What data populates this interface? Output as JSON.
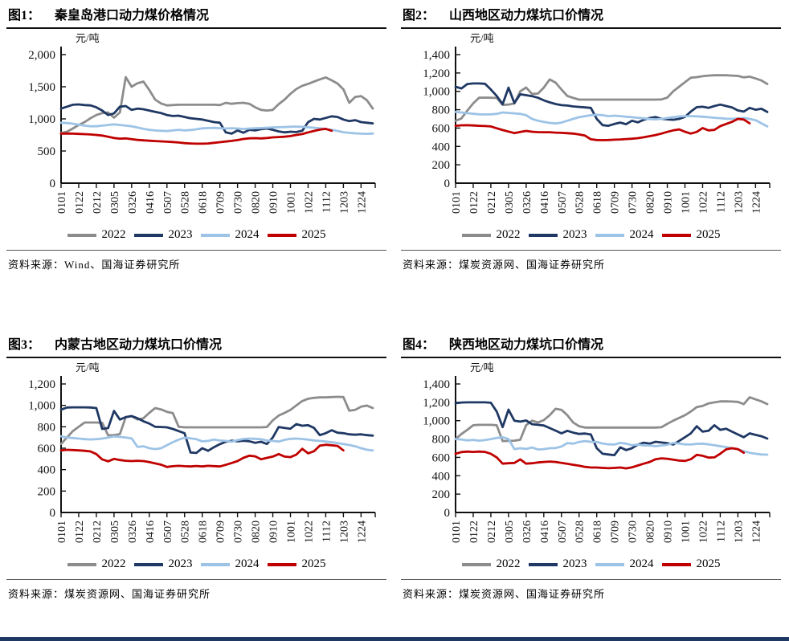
{
  "page": {
    "bottom_bar_color": "#1F3864"
  },
  "chart_data": [
    {
      "type": "line",
      "figure_label": "图1：",
      "title": "秦皇岛港口动力煤价格情况",
      "unit": "元/吨",
      "source_label": "资料来源：",
      "source": "Wind、国海证券研究所",
      "ylim": [
        0,
        2000
      ],
      "ytick_step": 500,
      "grid": false,
      "legend_position": "bottom",
      "n_points": 54,
      "categories": [
        "0101",
        "0122",
        "0212",
        "0305",
        "0326",
        "0416",
        "0507",
        "0528",
        "0618",
        "0709",
        "0730",
        "0820",
        "0910",
        "1001",
        "1022",
        "1112",
        "1203",
        "1224"
      ],
      "series": [
        {
          "name": "2022",
          "color": "#8C8C8C",
          "values": [
            780,
            800,
            850,
            905,
            950,
            1010,
            1060,
            1090,
            1100,
            1020,
            1100,
            1650,
            1500,
            1555,
            1580,
            1450,
            1300,
            1240,
            1210,
            1215,
            1220,
            1220,
            1220,
            1220,
            1220,
            1220,
            1220,
            1215,
            1250,
            1235,
            1245,
            1250,
            1235,
            1180,
            1140,
            1130,
            1140,
            1230,
            1300,
            1390,
            1465,
            1515,
            1545,
            1580,
            1615,
            1645,
            1600,
            1550,
            1460,
            1250,
            1340,
            1355,
            1290,
            1160
          ]
        },
        {
          "name": "2023",
          "color": "#1F3864",
          "values": [
            1160,
            1190,
            1220,
            1225,
            1215,
            1210,
            1180,
            1130,
            1060,
            1085,
            1190,
            1200,
            1140,
            1160,
            1150,
            1130,
            1110,
            1090,
            1060,
            1045,
            1050,
            1030,
            1010,
            1000,
            990,
            970,
            950,
            940,
            790,
            770,
            820,
            785,
            830,
            820,
            840,
            850,
            830,
            805,
            790,
            800,
            795,
            815,
            950,
            1000,
            990,
            1015,
            1040,
            1030,
            990,
            965,
            980,
            950,
            940,
            930
          ]
        },
        {
          "name": "2024",
          "color": "#9DC3E6",
          "values": [
            940,
            935,
            925,
            910,
            895,
            885,
            885,
            895,
            905,
            915,
            905,
            895,
            885,
            865,
            845,
            830,
            820,
            815,
            810,
            820,
            830,
            820,
            828,
            838,
            852,
            858,
            860,
            855,
            850,
            855,
            850,
            842,
            850,
            855,
            858,
            862,
            868,
            870,
            874,
            878,
            880,
            876,
            870,
            862,
            852,
            842,
            830,
            812,
            792,
            782,
            775,
            770,
            768,
            772
          ]
        },
        {
          "name": "2025",
          "color": "#C00000",
          "values": [
            770,
            772,
            770,
            766,
            762,
            757,
            750,
            740,
            722,
            703,
            692,
            696,
            684,
            673,
            666,
            660,
            655,
            650,
            645,
            640,
            632,
            622,
            617,
            614,
            614,
            618,
            627,
            638,
            648,
            658,
            670,
            688,
            698,
            700,
            696,
            702,
            712,
            718,
            722,
            732,
            750,
            764,
            790,
            812,
            832,
            845,
            815
          ]
        }
      ]
    },
    {
      "type": "line",
      "figure_label": "图2：",
      "title": "山西地区动力煤坑口价情况",
      "unit": "元/吨",
      "source_label": "资料来源：",
      "source": "煤炭资源网、国海证券研究所",
      "ylim": [
        0,
        1400
      ],
      "ytick_step": 200,
      "grid": false,
      "legend_position": "bottom",
      "n_points": 54,
      "categories": [
        "0101",
        "0122",
        "0212",
        "0305",
        "0326",
        "0416",
        "0507",
        "0528",
        "0618",
        "0709",
        "0730",
        "0820",
        "0910",
        "1001",
        "1022",
        "1112",
        "1203",
        "1224"
      ],
      "series": [
        {
          "name": "2022",
          "color": "#8C8C8C",
          "values": [
            680,
            705,
            790,
            870,
            930,
            932,
            930,
            928,
            852,
            856,
            868,
            1000,
            1042,
            972,
            976,
            1040,
            1130,
            1095,
            1020,
            950,
            928,
            910,
            910,
            910,
            910,
            910,
            910,
            910,
            910,
            910,
            910,
            910,
            910,
            910,
            910,
            912,
            932,
            1000,
            1050,
            1100,
            1148,
            1155,
            1165,
            1172,
            1175,
            1175,
            1175,
            1172,
            1168,
            1152,
            1160,
            1140,
            1118,
            1080
          ]
        },
        {
          "name": "2023",
          "color": "#1F3864",
          "values": [
            1050,
            1032,
            1080,
            1086,
            1086,
            1082,
            1020,
            950,
            860,
            1040,
            872,
            968,
            958,
            948,
            930,
            902,
            880,
            862,
            850,
            845,
            836,
            830,
            825,
            820,
            700,
            632,
            625,
            645,
            660,
            642,
            680,
            662,
            690,
            710,
            720,
            702,
            695,
            690,
            700,
            722,
            780,
            828,
            832,
            820,
            840,
            856,
            840,
            825,
            792,
            780,
            820,
            800,
            810,
            775
          ]
        },
        {
          "name": "2024",
          "color": "#9DC3E6",
          "values": [
            775,
            770,
            762,
            756,
            750,
            748,
            750,
            755,
            770,
            765,
            760,
            754,
            740,
            700,
            680,
            668,
            656,
            650,
            660,
            680,
            700,
            718,
            730,
            740,
            745,
            740,
            730,
            735,
            730,
            724,
            718,
            712,
            706,
            698,
            695,
            700,
            710,
            718,
            726,
            730,
            730,
            728,
            724,
            718,
            712,
            708,
            702,
            700,
            705,
            710,
            700,
            686,
            652,
            618
          ]
        },
        {
          "name": "2025",
          "color": "#C00000",
          "values": [
            625,
            630,
            631,
            628,
            625,
            622,
            618,
            598,
            578,
            562,
            545,
            557,
            569,
            560,
            556,
            555,
            555,
            550,
            548,
            544,
            540,
            530,
            518,
            478,
            470,
            468,
            470,
            473,
            476,
            480,
            484,
            490,
            500,
            512,
            524,
            540,
            558,
            575,
            585,
            560,
            540,
            558,
            600,
            575,
            580,
            620,
            645,
            668,
            700,
            693,
            652
          ]
        }
      ]
    },
    {
      "type": "line",
      "figure_label": "图3：",
      "title": "内蒙古地区动力煤坑口价情况",
      "unit": "元/吨",
      "source_label": "资料来源：",
      "source": "煤炭资源网、国海证券研究所",
      "ylim": [
        0,
        1200
      ],
      "ytick_step": 200,
      "grid": false,
      "legend_position": "bottom",
      "n_points": 54,
      "categories": [
        "0101",
        "0122",
        "0212",
        "0305",
        "0326",
        "0416",
        "0507",
        "0528",
        "0618",
        "0709",
        "0730",
        "0820",
        "0910",
        "1001",
        "1022",
        "1112",
        "1203",
        "1224"
      ],
      "series": [
        {
          "name": "2022",
          "color": "#8C8C8C",
          "values": [
            640,
            700,
            760,
            800,
            840,
            840,
            840,
            838,
            720,
            722,
            732,
            890,
            900,
            868,
            880,
            930,
            975,
            962,
            940,
            928,
            800,
            795,
            795,
            795,
            795,
            795,
            795,
            795,
            795,
            795,
            795,
            795,
            795,
            795,
            795,
            798,
            860,
            905,
            930,
            958,
            1000,
            1040,
            1062,
            1070,
            1075,
            1075,
            1078,
            1080,
            1078,
            950,
            958,
            988,
            998,
            975
          ]
        },
        {
          "name": "2023",
          "color": "#1F3864",
          "values": [
            960,
            980,
            982,
            982,
            982,
            980,
            975,
            780,
            788,
            948,
            868,
            890,
            900,
            880,
            852,
            830,
            800,
            798,
            795,
            780,
            760,
            740,
            560,
            556,
            600,
            576,
            610,
            638,
            660,
            670,
            665,
            670,
            665,
            650,
            660,
            640,
            700,
            798,
            790,
            782,
            825,
            810,
            815,
            790,
            722,
            740,
            768,
            745,
            740,
            730,
            726,
            730,
            722,
            718
          ]
        },
        {
          "name": "2024",
          "color": "#9DC3E6",
          "values": [
            712,
            700,
            695,
            690,
            685,
            682,
            685,
            690,
            700,
            710,
            706,
            700,
            692,
            612,
            618,
            600,
            592,
            600,
            628,
            656,
            680,
            698,
            692,
            684,
            664,
            668,
            680,
            672,
            668,
            660,
            676,
            686,
            690,
            688,
            684,
            672,
            668,
            662,
            678,
            688,
            690,
            686,
            680,
            672,
            668,
            662,
            656,
            648,
            640,
            630,
            618,
            600,
            586,
            578
          ]
        },
        {
          "name": "2025",
          "color": "#C00000",
          "values": [
            580,
            585,
            583,
            580,
            576,
            570,
            545,
            496,
            478,
            500,
            490,
            483,
            480,
            483,
            480,
            470,
            458,
            446,
            425,
            432,
            436,
            432,
            430,
            434,
            430,
            436,
            433,
            430,
            445,
            462,
            480,
            510,
            530,
            524,
            497,
            510,
            522,
            545,
            522,
            517,
            540,
            595,
            552,
            572,
            625,
            632,
            628,
            622,
            580
          ]
        }
      ]
    },
    {
      "type": "line",
      "figure_label": "图4：",
      "title": "陕西地区动力煤坑口价情况",
      "unit": "元/吨",
      "source_label": "资料来源：",
      "source": "煤炭资源网、国海证券研究所",
      "ylim": [
        0,
        1400
      ],
      "ytick_step": 200,
      "grid": false,
      "legend_position": "bottom",
      "n_points": 54,
      "categories": [
        "0101",
        "0122",
        "0212",
        "0305",
        "0326",
        "0416",
        "0507",
        "0528",
        "0618",
        "0709",
        "0730",
        "0820",
        "0910",
        "1001",
        "1022",
        "1112",
        "1203",
        "1224"
      ],
      "series": [
        {
          "name": "2022",
          "color": "#8C8C8C",
          "values": [
            800,
            855,
            900,
            950,
            955,
            955,
            955,
            950,
            778,
            780,
            782,
            792,
            950,
            1000,
            980,
            1005,
            1060,
            1130,
            1118,
            1060,
            980,
            940,
            925,
            925,
            925,
            925,
            925,
            925,
            925,
            925,
            925,
            925,
            925,
            925,
            925,
            928,
            965,
            1000,
            1030,
            1060,
            1100,
            1148,
            1160,
            1188,
            1200,
            1210,
            1210,
            1208,
            1205,
            1180,
            1255,
            1232,
            1210,
            1180
          ]
        },
        {
          "name": "2023",
          "color": "#1F3864",
          "values": [
            1190,
            1198,
            1200,
            1200,
            1200,
            1200,
            1195,
            1100,
            930,
            1120,
            1000,
            990,
            1002,
            962,
            955,
            948,
            920,
            892,
            862,
            890,
            870,
            856,
            860,
            850,
            700,
            640,
            632,
            625,
            710,
            680,
            700,
            740,
            760,
            750,
            770,
            762,
            755,
            740,
            780,
            820,
            862,
            940,
            880,
            890,
            950,
            900,
            912,
            880,
            850,
            820,
            862,
            845,
            830,
            805
          ]
        },
        {
          "name": "2024",
          "color": "#9DC3E6",
          "values": [
            800,
            795,
            786,
            790,
            782,
            788,
            800,
            812,
            820,
            800,
            690,
            700,
            692,
            708,
            686,
            690,
            700,
            702,
            718,
            756,
            750,
            768,
            778,
            770,
            768,
            752,
            742,
            740,
            758,
            750,
            732,
            740,
            730,
            730,
            722,
            730,
            738,
            758,
            752,
            742,
            740,
            748,
            750,
            742,
            732,
            722,
            712,
            700,
            688,
            668,
            650,
            640,
            632,
            630
          ]
        },
        {
          "name": "2025",
          "color": "#C00000",
          "values": [
            640,
            658,
            663,
            660,
            663,
            660,
            640,
            600,
            532,
            536,
            540,
            578,
            532,
            536,
            545,
            550,
            555,
            550,
            540,
            530,
            520,
            510,
            497,
            490,
            490,
            486,
            482,
            486,
            490,
            480,
            492,
            512,
            532,
            550,
            580,
            590,
            585,
            575,
            565,
            562,
            580,
            628,
            618,
            598,
            600,
            640,
            688,
            700,
            690,
            650
          ]
        }
      ]
    }
  ]
}
